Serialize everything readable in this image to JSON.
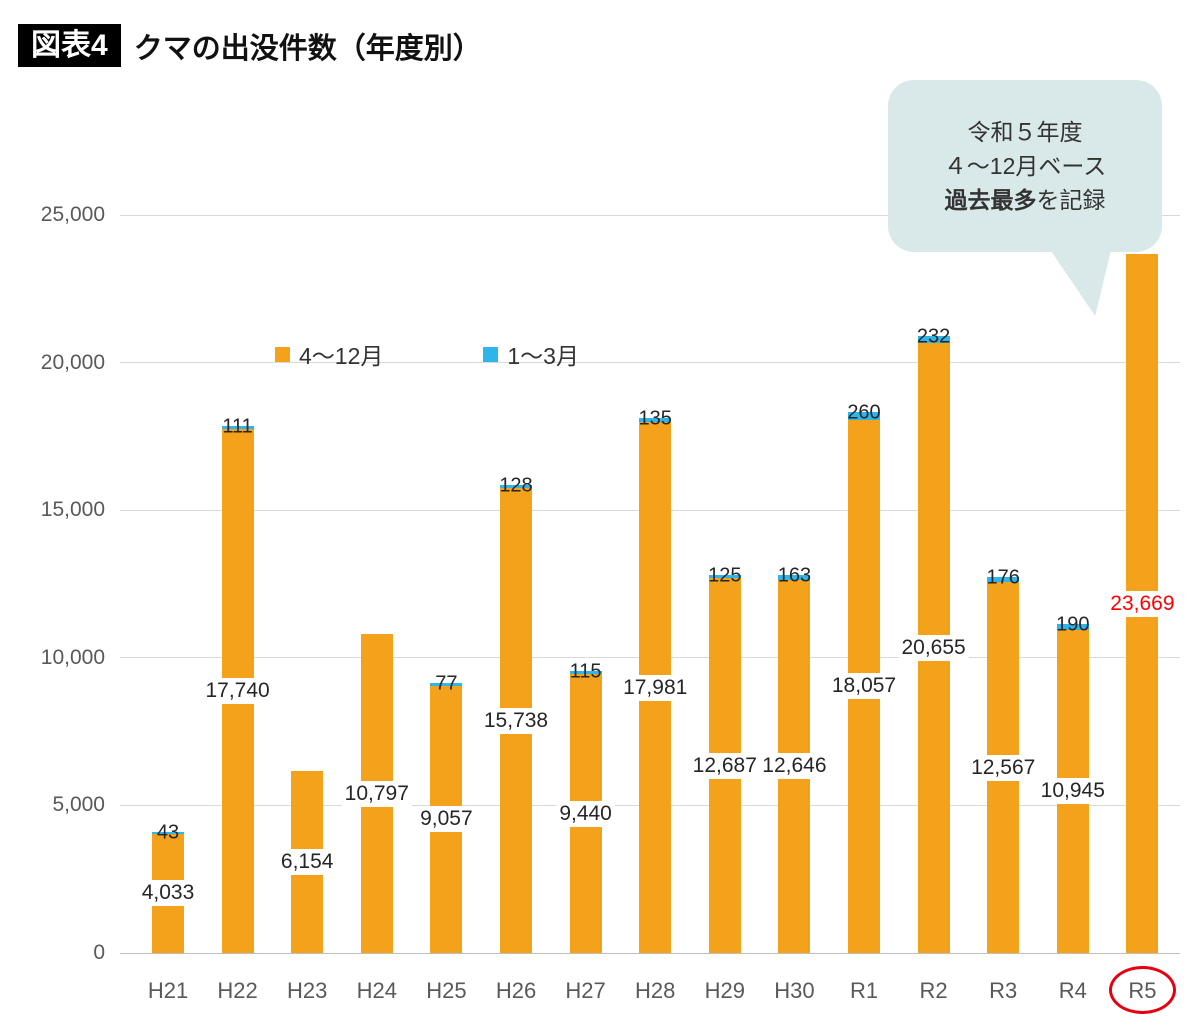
{
  "header": {
    "badge": "図表4",
    "title": "クマの出没件数（年度別）"
  },
  "legend": [
    {
      "label": "4～12月",
      "color": "#f4a11c"
    },
    {
      "label": "1～3月",
      "color": "#2eb5ea"
    }
  ],
  "callout": {
    "line1": "令和５年度",
    "line2": "４～12月ベース",
    "line3_bold": "過去最多",
    "line3_rest": "を記録"
  },
  "chart_data": {
    "type": "bar",
    "stacked": true,
    "title": "クマの出没件数（年度別）",
    "categories": [
      "H21",
      "H22",
      "H23",
      "H24",
      "H25",
      "H26",
      "H27",
      "H28",
      "H29",
      "H30",
      "R1",
      "R2",
      "R3",
      "R4",
      "R5"
    ],
    "series": [
      {
        "name": "4～12月",
        "color": "#f4a11c",
        "values": [
          4033,
          17740,
          6154,
          10797,
          9057,
          15738,
          9440,
          17981,
          12687,
          12646,
          18057,
          20655,
          12567,
          10945,
          23669
        ]
      },
      {
        "name": "1～3月",
        "color": "#2eb5ea",
        "values": [
          43,
          111,
          null,
          null,
          77,
          128,
          115,
          135,
          125,
          163,
          260,
          232,
          176,
          190,
          null
        ]
      }
    ],
    "yticks": [
      "0",
      "5,000",
      "10,000",
      "15,000",
      "20,000",
      "25,000"
    ],
    "ylim": [
      0,
      25000
    ],
    "grid": true,
    "legend_position": "inside-top-left",
    "highlight": {
      "category": "R5",
      "value_label_color": "#ff0000",
      "circled_axis_label": true
    }
  }
}
